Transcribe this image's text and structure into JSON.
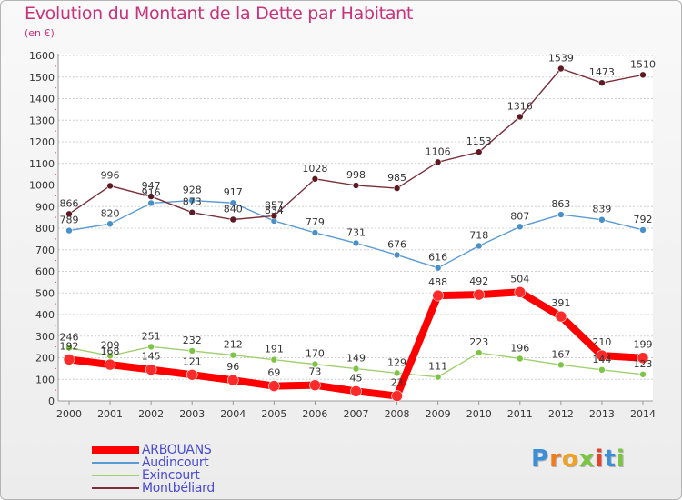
{
  "title": "Evolution du Montant de la Dette par Habitant",
  "subtitle": "(en €)",
  "logo": "Proxiti",
  "chart_data": {
    "type": "line",
    "title": "Evolution du Montant de la Dette par Habitant",
    "subtitle": "(en €)",
    "xlabel": "",
    "ylabel": "",
    "ylim": [
      0,
      1600
    ],
    "y_ticks": [
      0,
      100,
      200,
      300,
      400,
      500,
      600,
      700,
      800,
      900,
      1000,
      1100,
      1200,
      1300,
      1400,
      1500,
      1600
    ],
    "grid": true,
    "legend_position": "bottom-left",
    "categories": [
      "2000",
      "2001",
      "2002",
      "2003",
      "2004",
      "2005",
      "2006",
      "2007",
      "2008",
      "2009",
      "2010",
      "2011",
      "2012",
      "2013",
      "2014"
    ],
    "series": [
      {
        "name": "ARBOUANS",
        "color": "#ff0000",
        "marker": "#ff2a2a",
        "width": 8,
        "r": 6,
        "values": [
          192,
          168,
          145,
          121,
          96,
          69,
          73,
          45,
          23,
          488,
          492,
          504,
          391,
          210,
          199
        ]
      },
      {
        "name": "Audincourt",
        "color": "#5b9bd5",
        "marker": "#4a90c8",
        "width": 1.4,
        "r": 3.5,
        "values": [
          789,
          820,
          916,
          928,
          917,
          834,
          779,
          731,
          676,
          616,
          718,
          807,
          863,
          839,
          792
        ]
      },
      {
        "name": "Exincourt",
        "color": "#a0d070",
        "marker": "#7cc444",
        "width": 1.4,
        "r": 3.5,
        "values": [
          246,
          209,
          251,
          232,
          212,
          191,
          170,
          149,
          129,
          111,
          223,
          196,
          167,
          144,
          123
        ]
      },
      {
        "name": "Montbéliard",
        "color": "#7a2e3a",
        "marker": "#5e1a22",
        "width": 1.4,
        "r": 3.5,
        "values": [
          866,
          996,
          947,
          873,
          840,
          857,
          1028,
          998,
          985,
          1106,
          1153,
          1316,
          1539,
          1473,
          1510
        ]
      }
    ]
  }
}
